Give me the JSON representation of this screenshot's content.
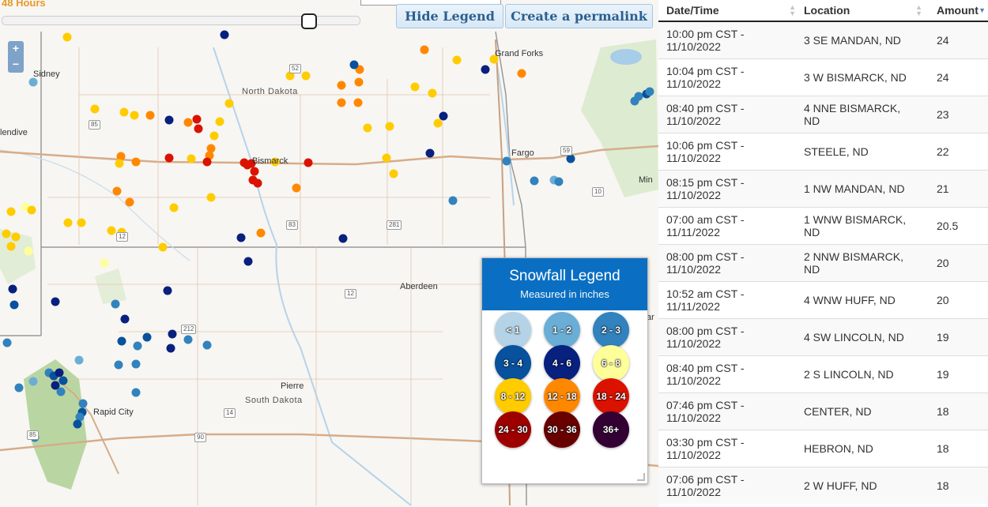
{
  "controls": {
    "time_label": "48 Hours",
    "hide_legend_label": "Hide Legend",
    "permalink_label": "Create a permalink",
    "zoom_in": "+",
    "zoom_out": "−"
  },
  "map": {
    "cities": {
      "sidney": "Sidney",
      "glendive": "lendive",
      "grand_forks": "Grand Forks",
      "fargo": "Fargo",
      "bismarck": "Bismarck",
      "aberdeen": "Aberdeen",
      "pierre": "Pierre",
      "rapid_city": "Rapid City",
      "min": "Min",
      "ar": "ar"
    },
    "states": {
      "nd": "North Dakota",
      "sd": "South Dakota"
    },
    "shields": {
      "i85": "85",
      "i52": "52",
      "i59": "59",
      "i10": "10",
      "i12a": "12",
      "i83": "83",
      "i281": "281",
      "i12b": "12",
      "i212": "212",
      "i14": "14",
      "i90": "90",
      "i85b": "85"
    }
  },
  "legend": {
    "title": "Snowfall Legend",
    "subtitle": "Measured in inches",
    "items": [
      {
        "label": "< 1",
        "color": "#b4d3e7"
      },
      {
        "label": "1 - 2",
        "color": "#6aaed6"
      },
      {
        "label": "2 - 3",
        "color": "#3182bd"
      },
      {
        "label": "3 - 4",
        "color": "#08519c"
      },
      {
        "label": "4 - 6",
        "color": "#08207e"
      },
      {
        "label": "6 - 8",
        "color": "#ffff99"
      },
      {
        "label": "8 - 12",
        "color": "#ffcc00"
      },
      {
        "label": "12 - 18",
        "color": "#ff8800"
      },
      {
        "label": "18 - 24",
        "color": "#db1200"
      },
      {
        "label": "24 - 30",
        "color": "#9e0000"
      },
      {
        "label": "30 - 36",
        "color": "#690000"
      },
      {
        "label": "36+",
        "color": "#330033"
      }
    ]
  },
  "table": {
    "headers": [
      "Date/Time",
      "Location",
      "Amount"
    ],
    "rows": [
      {
        "time": "10:00 pm CST -",
        "date": "11/10/2022",
        "loc": "3 SE MANDAN, ND",
        "amt": "24"
      },
      {
        "time": "10:04 pm CST -",
        "date": "11/10/2022",
        "loc": "3 W BISMARCK, ND",
        "amt": "24"
      },
      {
        "time": "08:40 pm CST -",
        "date": "11/10/2022",
        "loc": "4 NNE BISMARCK,",
        "loc2": "ND",
        "amt": "23"
      },
      {
        "time": "10:06 pm CST -",
        "date": "11/10/2022",
        "loc": "STEELE, ND",
        "amt": "22"
      },
      {
        "time": "08:15 pm CST -",
        "date": "11/10/2022",
        "loc": "1 NW MANDAN, ND",
        "amt": "21"
      },
      {
        "time": "07:00 am CST -",
        "date": "11/11/2022",
        "loc": "1 WNW BISMARCK,",
        "loc2": "ND",
        "amt": "20.5"
      },
      {
        "time": "08:00 pm CST -",
        "date": "11/10/2022",
        "loc": "2 NNW BISMARCK,",
        "loc2": "ND",
        "amt": "20"
      },
      {
        "time": "10:52 am CST -",
        "date": "11/11/2022",
        "loc": "4 WNW HUFF, ND",
        "amt": "20"
      },
      {
        "time": "08:00 pm CST -",
        "date": "11/10/2022",
        "loc": "4 SW LINCOLN, ND",
        "amt": "19"
      },
      {
        "time": "08:40 pm CST -",
        "date": "11/10/2022",
        "loc": "2 S LINCOLN, ND",
        "amt": "19"
      },
      {
        "time": "07:46 pm CST -",
        "date": "11/10/2022",
        "loc": "CENTER, ND",
        "amt": "18"
      },
      {
        "time": "03:30 pm CST -",
        "date": "11/10/2022",
        "loc": "HEBRON, ND",
        "amt": "18"
      },
      {
        "time": "07:06 pm CST -",
        "date": "11/10/2022",
        "loc": "2 W HUFF, ND",
        "amt": "18"
      }
    ]
  }
}
